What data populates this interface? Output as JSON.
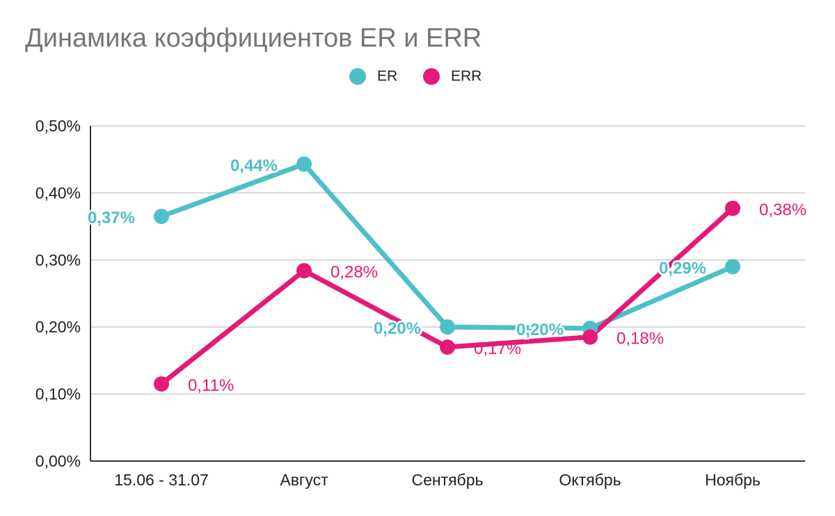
{
  "chart_data": {
    "type": "line",
    "title": "Динамика коэффициентов ER и ERR",
    "categories": [
      "15.06 - 31.07",
      "Август",
      "Сентябрь",
      "Октябрь",
      "Ноябрь"
    ],
    "series": [
      {
        "name": "ER",
        "color": "#4dbfc8",
        "values": [
          0.365,
          0.443,
          0.2,
          0.198,
          0.29
        ],
        "labels": [
          "0,37%",
          "0,44%",
          "0,20%",
          "0,20%",
          "0,29%"
        ]
      },
      {
        "name": "ERR",
        "color": "#e51a77",
        "values": [
          0.115,
          0.284,
          0.17,
          0.185,
          0.377
        ],
        "labels": [
          "0,11%",
          "0,28%",
          "0,17%",
          "0,18%",
          "0,38%"
        ]
      }
    ],
    "y_ticks": [
      "0,00%",
      "0,10%",
      "0,20%",
      "0,30%",
      "0,40%",
      "0,50%"
    ],
    "ylim": [
      0,
      0.5
    ],
    "grid": true,
    "legend_position": "top"
  }
}
